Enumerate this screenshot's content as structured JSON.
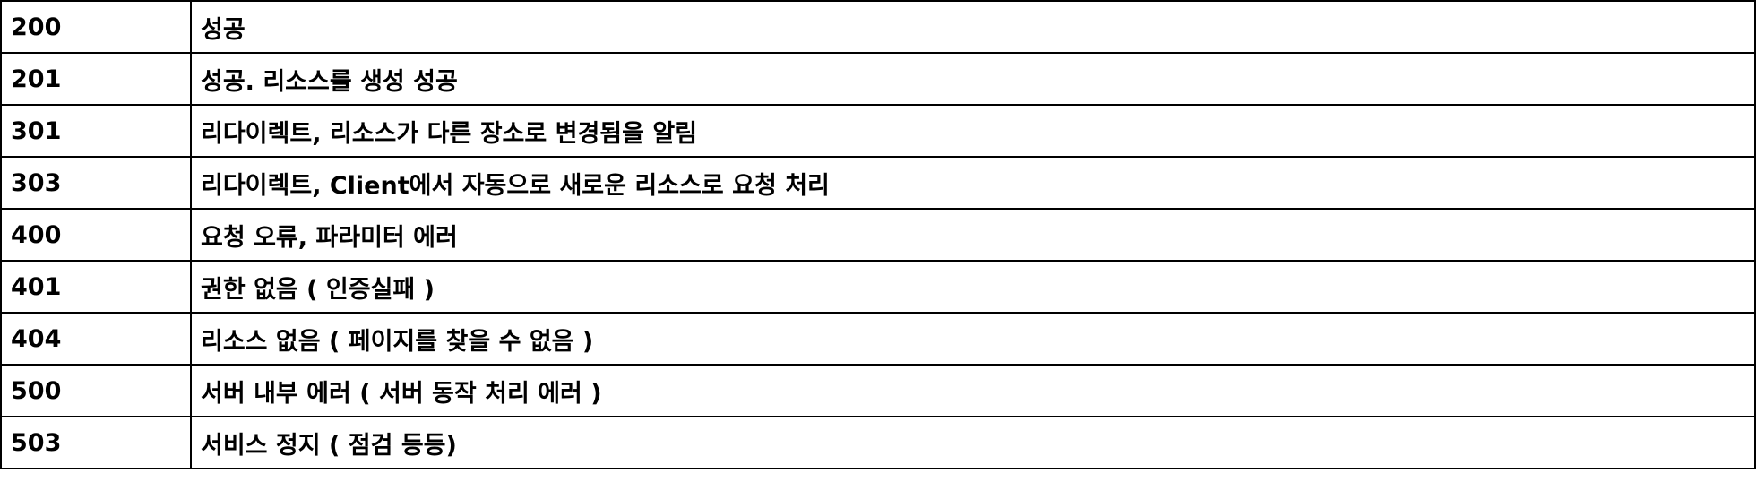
{
  "status_table": {
    "rows": [
      {
        "code": "200",
        "description": "성공"
      },
      {
        "code": "201",
        "description": "성공. 리소스를 생성 성공"
      },
      {
        "code": "301",
        "description": "리다이렉트, 리소스가 다른 장소로 변경됨을 알림"
      },
      {
        "code": "303",
        "description": "리다이렉트, Client에서 자동으로 새로운 리소스로 요청 처리"
      },
      {
        "code": "400",
        "description": "요청 오류, 파라미터 에러"
      },
      {
        "code": "401",
        "description": "권한 없음 ( 인증실패 )"
      },
      {
        "code": "404",
        "description": "리소스 없음 ( 페이지를 찾을 수 없음 )"
      },
      {
        "code": "500",
        "description": "서버 내부 에러 ( 서버 동작 처리 에러 )"
      },
      {
        "code": "503",
        "description": "서비스 정지 ( 점검 등등)"
      }
    ]
  }
}
